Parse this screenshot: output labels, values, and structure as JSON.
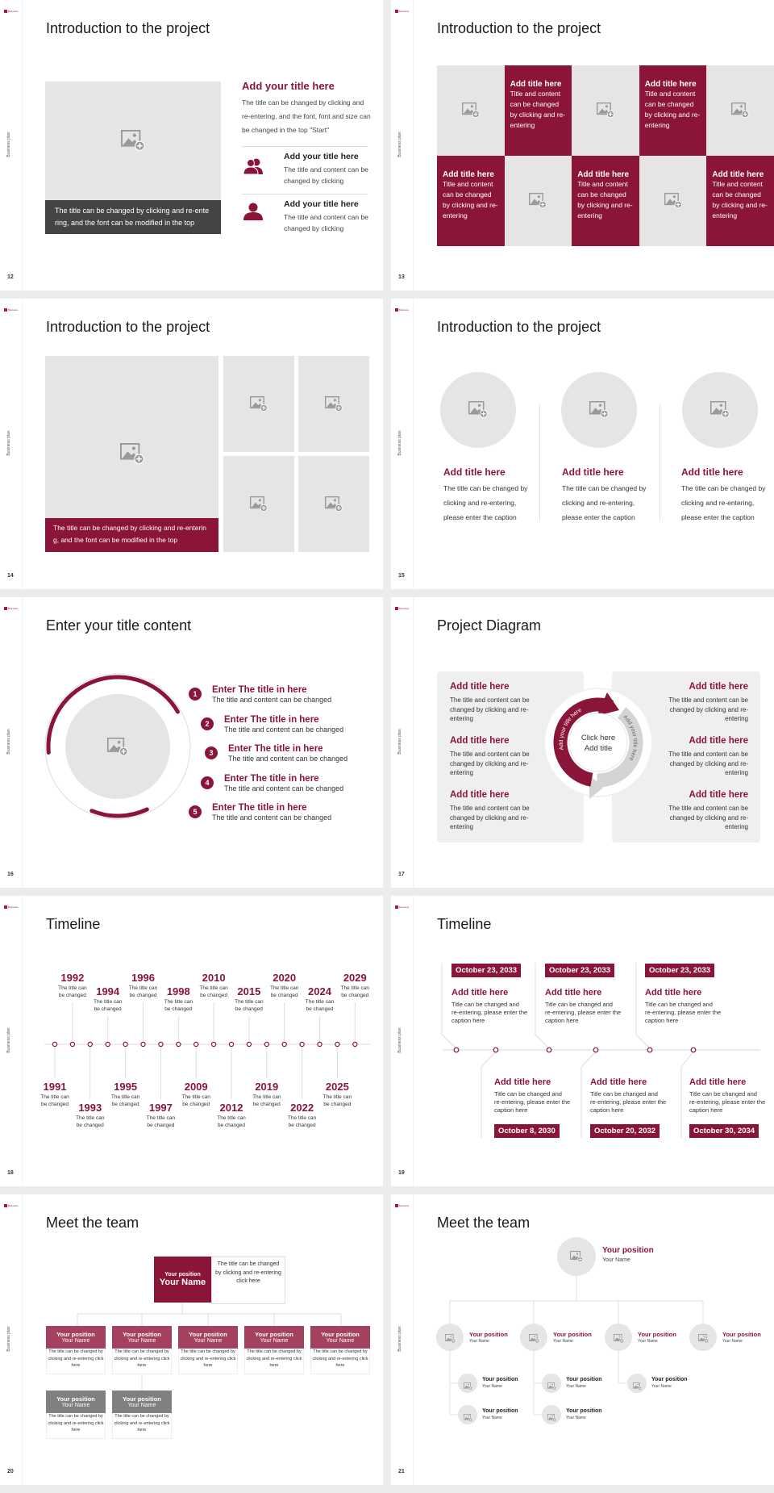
{
  "deck": {
    "logo_text": "Business",
    "side_label": "Business plan",
    "accent": "#8b1538",
    "placeholder_gray": "#e6e4e4"
  },
  "slides": [
    {
      "number": "12",
      "title": "Introduction to the project",
      "caption": "The title can be changed by clicking and re-entering, and the font can be modified in the top",
      "heading": "Add your title here",
      "body": "The title can be changed by clicking and re-entering, and the font, font and size can be changed in the top \"Start\"",
      "items": [
        {
          "icon": "group-icon",
          "title": "Add your title here",
          "text": "The title and content can be changed by clicking"
        },
        {
          "icon": "user-icon",
          "title": "Add your title here",
          "text": "The title and content can be changed by clicking"
        }
      ]
    },
    {
      "number": "13",
      "title": "Introduction to the project",
      "cells": [
        {
          "type": "image"
        },
        {
          "type": "text",
          "title": "Add title here",
          "text": "Title and content can be changed by clicking and re-entering"
        },
        {
          "type": "image"
        },
        {
          "type": "text",
          "title": "Add title here",
          "text": "Title and content can be changed by clicking and re-entering"
        },
        {
          "type": "image"
        },
        {
          "type": "text",
          "title": "Add title here",
          "text": "Title and content can be changed by clicking and re-entering"
        },
        {
          "type": "image"
        },
        {
          "type": "text",
          "title": "Add title here",
          "text": "Title and content can be changed by clicking and re-entering"
        },
        {
          "type": "image"
        },
        {
          "type": "text",
          "title": "Add title here",
          "text": "Title and content can be changed by clicking and re-entering"
        }
      ]
    },
    {
      "number": "14",
      "title": "Introduction to the project",
      "caption": "The title can be changed by clicking and re-entering, and the font can be modified in the top"
    },
    {
      "number": "15",
      "title": "Introduction to the project",
      "items": [
        {
          "title": "Add title here",
          "text": "The title can be changed by clicking and re-entering, please enter the caption"
        },
        {
          "title": "Add title here",
          "text": "The title can be changed by clicking and re-entering, please enter the caption"
        },
        {
          "title": "Add title here",
          "text": "The title can be changed by clicking and re-entering, please enter the caption"
        }
      ]
    },
    {
      "number": "16",
      "title": "Enter your title content",
      "items": [
        {
          "num": "1",
          "title": "Enter The title in here",
          "text": "The title and content can be changed"
        },
        {
          "num": "2",
          "title": "Enter The title in here",
          "text": "The title and content can be changed"
        },
        {
          "num": "3",
          "title": "Enter The title in here",
          "text": "The title and content can be changed"
        },
        {
          "num": "4",
          "title": "Enter The title in here",
          "text": "The title and content can be changed"
        },
        {
          "num": "5",
          "title": "Enter The title in here",
          "text": "The title and content can be changed"
        }
      ]
    },
    {
      "number": "17",
      "title": "Project Diagram",
      "left": [
        {
          "title": "Add title here",
          "text": "The title and content can be changed by clicking and re-entering"
        },
        {
          "title": "Add title here",
          "text": "The title and content can be changed by clicking and re-entering"
        },
        {
          "title": "Add title here",
          "text": "The title and content can be changed by clicking and re-entering"
        }
      ],
      "right": [
        {
          "title": "Add title here",
          "text": "The title and content can be changed by clicking and re-entering"
        },
        {
          "title": "Add title here",
          "text": "The title and content can be changed by clicking and re-entering"
        },
        {
          "title": "Add title here",
          "text": "The title and content can be changed by clicking and re-entering"
        }
      ],
      "center_line1": "Click here",
      "center_line2": "Add title",
      "arc_left": "Add your title here",
      "arc_right": "Add your title here"
    },
    {
      "number": "18",
      "title": "Timeline",
      "events": [
        {
          "year": "1991",
          "text": "The title can be changed"
        },
        {
          "year": "1992",
          "text": "The title can be changed"
        },
        {
          "year": "1993",
          "text": "The title can be changed"
        },
        {
          "year": "1994",
          "text": "The title can be changed"
        },
        {
          "year": "1995",
          "text": "The title can be changed"
        },
        {
          "year": "1996",
          "text": "The title can be changed"
        },
        {
          "year": "1997",
          "text": "The title can be changed"
        },
        {
          "year": "1998",
          "text": "The title can be changed"
        },
        {
          "year": "2009",
          "text": "The title can be changed"
        },
        {
          "year": "2010",
          "text": "The title can be changed"
        },
        {
          "year": "2012",
          "text": "The title can be changed"
        },
        {
          "year": "2015",
          "text": "The title can be changed"
        },
        {
          "year": "2019",
          "text": "The title can be changed"
        },
        {
          "year": "2020",
          "text": "The title can be changed"
        },
        {
          "year": "2022",
          "text": "The title can be changed"
        },
        {
          "year": "2024",
          "text": "The title can be changed"
        },
        {
          "year": "2025",
          "text": "The title can be changed"
        },
        {
          "year": "2029",
          "text": "The title can be changed"
        }
      ]
    },
    {
      "number": "19",
      "title": "Timeline",
      "top": [
        {
          "date": "October 23, 2033",
          "title": "Add title here",
          "text": "Title can be changed and re-entering, please enter the caption here"
        },
        {
          "date": "October 23, 2033",
          "title": "Add title here",
          "text": "Title can be changed and re-entering, please enter the caption here"
        },
        {
          "date": "October 23, 2033",
          "title": "Add title here",
          "text": "Title can be changed and re-entering, please enter the caption here"
        }
      ],
      "bottom": [
        {
          "date": "October 8, 2030",
          "title": "Add title here",
          "text": "Title can be changed and re-entering, please enter the caption here"
        },
        {
          "date": "October 20, 2032",
          "title": "Add title here",
          "text": "Title can be changed and re-entering, please enter the caption here"
        },
        {
          "date": "October 30, 2034",
          "title": "Add title here",
          "text": "Title can be changed and re-entering, please enter the caption here"
        }
      ]
    },
    {
      "number": "20",
      "title": "Meet the team",
      "leader": {
        "position": "Your position",
        "name": "Your Name",
        "text": "The title can be changed by clicking and re-entering click here"
      },
      "members": [
        {
          "position": "Your position",
          "name": "Your Name",
          "text": "The title can be changed by clicking and re-entering click here"
        },
        {
          "position": "Your position",
          "name": "Your Name",
          "text": "The title can be changed by clicking and re-entering click here"
        },
        {
          "position": "Your position",
          "name": "Your Name",
          "text": "The title can be changed by clicking and re-entering click here"
        },
        {
          "position": "Your position",
          "name": "Your Name",
          "text": "The title can be changed by clicking and re-entering click here"
        },
        {
          "position": "Your position",
          "name": "Your Name",
          "text": "The title can be changed by clicking and re-entering click here"
        },
        {
          "position": "Your position",
          "name": "Your Name",
          "text": "The title can be changed by clicking and re-entering click here"
        },
        {
          "position": "Your position",
          "name": "Your Name",
          "text": "The title can be changed by clicking and re-entering click here"
        }
      ]
    },
    {
      "number": "21",
      "title": "Meet the team",
      "leader": {
        "position": "Your position",
        "name": "Your Name"
      },
      "managers": [
        {
          "position": "Your position",
          "name": "Your Name"
        },
        {
          "position": "Your position",
          "name": "Your Name"
        },
        {
          "position": "Your position",
          "name": "Your Name"
        },
        {
          "position": "Your position",
          "name": "Your Name"
        }
      ],
      "staff": [
        {
          "position": "Your position",
          "name": "Your Name"
        },
        {
          "position": "Your position",
          "name": "Your Name"
        },
        {
          "position": "Your position",
          "name": "Your Name"
        },
        {
          "position": "Your position",
          "name": "Your Name"
        },
        {
          "position": "Your position",
          "name": "Your Name"
        }
      ]
    }
  ]
}
